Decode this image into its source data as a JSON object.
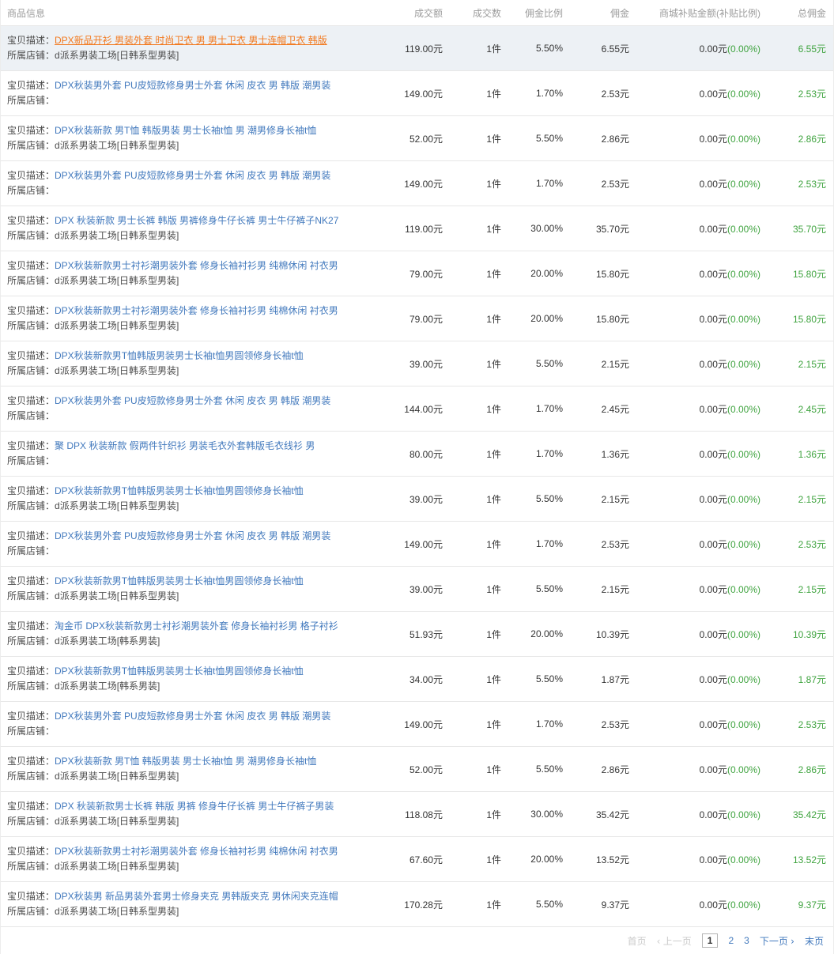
{
  "header": {
    "columns": [
      "商品信息",
      "成交额",
      "成交数",
      "佣金比例",
      "佣金",
      "商城补贴金额(补贴比例)",
      "总佣金"
    ]
  },
  "labels": {
    "desc": "宝贝描述：",
    "shop": "所属店铺："
  },
  "rows": [
    {
      "highlighted": true,
      "desc": "DPX新品开衫 男装外套 时尚卫衣 男 男士卫衣 男士连帽卫衣 韩版",
      "shop": "d派系男装工场[日韩系型男装]",
      "amount": "119.00元",
      "count": "1件",
      "ratio": "5.50%",
      "commission": "6.55元",
      "subsidy": "0.00元",
      "subsidy_pct": "(0.00%)",
      "total": "6.55元"
    },
    {
      "highlighted": false,
      "desc": "DPX秋装男外套 PU皮短款修身男士外套 休闲 皮衣 男 韩版 潮男装",
      "shop": "",
      "amount": "149.00元",
      "count": "1件",
      "ratio": "1.70%",
      "commission": "2.53元",
      "subsidy": "0.00元",
      "subsidy_pct": "(0.00%)",
      "total": "2.53元"
    },
    {
      "highlighted": false,
      "desc": "DPX秋装新款 男T恤 韩版男装 男士长袖t恤 男 潮男修身长袖t恤",
      "shop": "d派系男装工场[日韩系型男装]",
      "amount": "52.00元",
      "count": "1件",
      "ratio": "5.50%",
      "commission": "2.86元",
      "subsidy": "0.00元",
      "subsidy_pct": "(0.00%)",
      "total": "2.86元"
    },
    {
      "highlighted": false,
      "desc": "DPX秋装男外套 PU皮短款修身男士外套 休闲 皮衣 男 韩版 潮男装",
      "shop": "",
      "amount": "149.00元",
      "count": "1件",
      "ratio": "1.70%",
      "commission": "2.53元",
      "subsidy": "0.00元",
      "subsidy_pct": "(0.00%)",
      "total": "2.53元"
    },
    {
      "highlighted": false,
      "desc": "DPX 秋装新款 男士长裤 韩版 男裤修身牛仔长裤 男士牛仔裤子NK27",
      "shop": "d派系男装工场[日韩系型男装]",
      "amount": "119.00元",
      "count": "1件",
      "ratio": "30.00%",
      "commission": "35.70元",
      "subsidy": "0.00元",
      "subsidy_pct": "(0.00%)",
      "total": "35.70元"
    },
    {
      "highlighted": false,
      "desc": "DPX秋装新款男士衬衫潮男装外套 修身长袖衬衫男 纯棉休闲 衬衣男",
      "shop": "d派系男装工场[日韩系型男装]",
      "amount": "79.00元",
      "count": "1件",
      "ratio": "20.00%",
      "commission": "15.80元",
      "subsidy": "0.00元",
      "subsidy_pct": "(0.00%)",
      "total": "15.80元"
    },
    {
      "highlighted": false,
      "desc": "DPX秋装新款男士衬衫潮男装外套 修身长袖衬衫男 纯棉休闲 衬衣男",
      "shop": "d派系男装工场[日韩系型男装]",
      "amount": "79.00元",
      "count": "1件",
      "ratio": "20.00%",
      "commission": "15.80元",
      "subsidy": "0.00元",
      "subsidy_pct": "(0.00%)",
      "total": "15.80元"
    },
    {
      "highlighted": false,
      "desc": "DPX秋装新款男T恤韩版男装男士长袖t恤男圆领修身长袖t恤",
      "shop": "d派系男装工场[日韩系型男装]",
      "amount": "39.00元",
      "count": "1件",
      "ratio": "5.50%",
      "commission": "2.15元",
      "subsidy": "0.00元",
      "subsidy_pct": "(0.00%)",
      "total": "2.15元"
    },
    {
      "highlighted": false,
      "desc": "DPX秋装男外套 PU皮短款修身男士外套 休闲 皮衣 男 韩版 潮男装",
      "shop": "",
      "amount": "144.00元",
      "count": "1件",
      "ratio": "1.70%",
      "commission": "2.45元",
      "subsidy": "0.00元",
      "subsidy_pct": "(0.00%)",
      "total": "2.45元"
    },
    {
      "highlighted": false,
      "desc": "聚 DPX 秋装新款 假两件针织衫 男装毛衣外套韩版毛衣线衫 男",
      "shop": "",
      "amount": "80.00元",
      "count": "1件",
      "ratio": "1.70%",
      "commission": "1.36元",
      "subsidy": "0.00元",
      "subsidy_pct": "(0.00%)",
      "total": "1.36元"
    },
    {
      "highlighted": false,
      "desc": "DPX秋装新款男T恤韩版男装男士长袖t恤男圆领修身长袖t恤",
      "shop": "d派系男装工场[日韩系型男装]",
      "amount": "39.00元",
      "count": "1件",
      "ratio": "5.50%",
      "commission": "2.15元",
      "subsidy": "0.00元",
      "subsidy_pct": "(0.00%)",
      "total": "2.15元"
    },
    {
      "highlighted": false,
      "desc": "DPX秋装男外套 PU皮短款修身男士外套 休闲 皮衣 男 韩版 潮男装",
      "shop": "",
      "amount": "149.00元",
      "count": "1件",
      "ratio": "1.70%",
      "commission": "2.53元",
      "subsidy": "0.00元",
      "subsidy_pct": "(0.00%)",
      "total": "2.53元"
    },
    {
      "highlighted": false,
      "desc": "DPX秋装新款男T恤韩版男装男士长袖t恤男圆领修身长袖t恤",
      "shop": "d派系男装工场[日韩系型男装]",
      "amount": "39.00元",
      "count": "1件",
      "ratio": "5.50%",
      "commission": "2.15元",
      "subsidy": "0.00元",
      "subsidy_pct": "(0.00%)",
      "total": "2.15元"
    },
    {
      "highlighted": false,
      "desc": "淘金币 DPX秋装新款男士衬衫潮男装外套 修身长袖衬衫男 格子衬衫",
      "shop": "d派系男装工场[韩系男装]",
      "amount": "51.93元",
      "count": "1件",
      "ratio": "20.00%",
      "commission": "10.39元",
      "subsidy": "0.00元",
      "subsidy_pct": "(0.00%)",
      "total": "10.39元"
    },
    {
      "highlighted": false,
      "desc": "DPX秋装新款男T恤韩版男装男士长袖t恤男圆领修身长袖t恤",
      "shop": "d派系男装工场[韩系男装]",
      "amount": "34.00元",
      "count": "1件",
      "ratio": "5.50%",
      "commission": "1.87元",
      "subsidy": "0.00元",
      "subsidy_pct": "(0.00%)",
      "total": "1.87元"
    },
    {
      "highlighted": false,
      "desc": "DPX秋装男外套 PU皮短款修身男士外套 休闲 皮衣 男 韩版 潮男装",
      "shop": "",
      "amount": "149.00元",
      "count": "1件",
      "ratio": "1.70%",
      "commission": "2.53元",
      "subsidy": "0.00元",
      "subsidy_pct": "(0.00%)",
      "total": "2.53元"
    },
    {
      "highlighted": false,
      "desc": "DPX秋装新款 男T恤 韩版男装 男士长袖t恤 男 潮男修身长袖t恤",
      "shop": "d派系男装工场[日韩系型男装]",
      "amount": "52.00元",
      "count": "1件",
      "ratio": "5.50%",
      "commission": "2.86元",
      "subsidy": "0.00元",
      "subsidy_pct": "(0.00%)",
      "total": "2.86元"
    },
    {
      "highlighted": false,
      "desc": "DPX 秋装新款男士长裤 韩版 男裤 修身牛仔长裤 男士牛仔裤子男装",
      "shop": "d派系男装工场[日韩系型男装]",
      "amount": "118.08元",
      "count": "1件",
      "ratio": "30.00%",
      "commission": "35.42元",
      "subsidy": "0.00元",
      "subsidy_pct": "(0.00%)",
      "total": "35.42元"
    },
    {
      "highlighted": false,
      "desc": "DPX秋装新款男士衬衫潮男装外套 修身长袖衬衫男 纯棉休闲 衬衣男",
      "shop": "d派系男装工场[日韩系型男装]",
      "amount": "67.60元",
      "count": "1件",
      "ratio": "20.00%",
      "commission": "13.52元",
      "subsidy": "0.00元",
      "subsidy_pct": "(0.00%)",
      "total": "13.52元"
    },
    {
      "highlighted": false,
      "desc": "DPX秋装男 新品男装外套男士修身夹克 男韩版夹克 男休闲夹克连帽",
      "shop": "d派系男装工场[日韩系型男装]",
      "amount": "170.28元",
      "count": "1件",
      "ratio": "5.50%",
      "commission": "9.37元",
      "subsidy": "0.00元",
      "subsidy_pct": "(0.00%)",
      "total": "9.37元"
    }
  ],
  "pagination": {
    "first": "首页",
    "prev": "上一页",
    "prev_arrow": "‹",
    "pages": [
      "1",
      "2",
      "3"
    ],
    "current": "1",
    "next": "下一页",
    "next_arrow": "›",
    "last": "末页"
  },
  "colors": {
    "link_blue": "#4279bd",
    "hover_orange": "#f2791e",
    "green": "#3fa33f",
    "header_gray": "#9c9c9c",
    "highlight_row_bg": "#edf1f5",
    "border": "#e7e7e7",
    "disabled_gray": "#cbcbcb"
  }
}
